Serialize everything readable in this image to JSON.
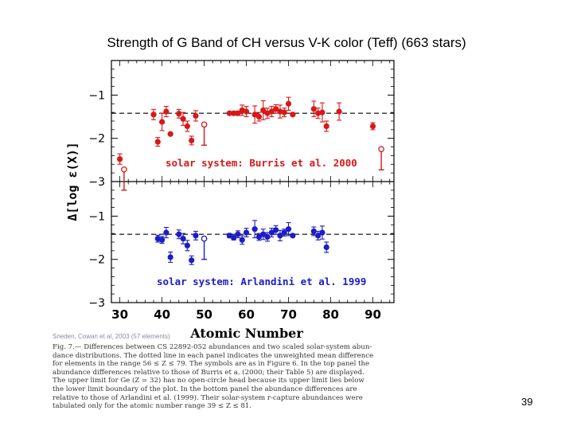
{
  "slide": {
    "title": "Strength of G Band of CH versus V-K color (Teff) (663 stars)",
    "page_number": "39"
  },
  "figure": {
    "credit": "Sneden, Cowan et al, 2003 (57 elements)",
    "caption_lines": [
      "Fig. 7.— Differences between CS 22892-052 abundances and two scaled solar-system abun-",
      "dance distributions. The dotted line in each panel indicates the unweighted mean difference",
      "for elements in the range 56 ≤ Z ≤ 79. The symbols are as in Figure 6. In the top panel the",
      "abundance differences relative to those of Burris et a. (2000; their Table 5) are displayed.",
      "The upper limit for Ge (Z = 32) has no open-circle head because its upper limit lies below",
      "the lower limit boundary of the plot. In the bottom panel the abundance differences are",
      "relative to those of Arlandini et al. (1999). Their solar-system r-capture abundances were",
      "tabulated only for the atomic number range 39 ≤ Z ≤ 81."
    ]
  },
  "chart_data": {
    "type": "scatter",
    "xlabel": "Atomic Number",
    "ylabel": "Δ[log ε(X)]",
    "xlim": [
      28,
      95
    ],
    "xticks": [
      30,
      40,
      50,
      60,
      70,
      80,
      90
    ],
    "colors": {
      "top": "#d81818",
      "bottom": "#1c1cc8"
    },
    "panels": [
      {
        "name": "top",
        "label": "solar system: Burris et al. 2000",
        "ylim": [
          -3.0,
          -0.2
        ],
        "yticks": [
          -1,
          -2,
          -3
        ],
        "ytick_labels": [
          "−1",
          "−2",
          "−3"
        ],
        "mean_line": -1.42,
        "points": [
          {
            "x": 30,
            "y": -2.48,
            "err": 0.12,
            "open": false,
            "limit": false
          },
          {
            "x": 31,
            "y": -2.72,
            "err": 0.0,
            "open": true,
            "limit": true
          },
          {
            "x": 38,
            "y": -1.45,
            "err": 0.12,
            "open": false,
            "limit": false
          },
          {
            "x": 39,
            "y": -2.08,
            "err": 0.1,
            "open": false,
            "limit": false
          },
          {
            "x": 40,
            "y": -1.62,
            "err": 0.2,
            "open": false,
            "limit": false
          },
          {
            "x": 41,
            "y": -1.38,
            "err": 0.12,
            "open": false,
            "limit": false
          },
          {
            "x": 42,
            "y": -1.9,
            "err": 0.0,
            "open": false,
            "limit": false
          },
          {
            "x": 44,
            "y": -1.43,
            "err": 0.1,
            "open": false,
            "limit": false
          },
          {
            "x": 45,
            "y": -1.55,
            "err": 0.15,
            "open": false,
            "limit": false
          },
          {
            "x": 46,
            "y": -1.72,
            "err": 0.12,
            "open": false,
            "limit": false
          },
          {
            "x": 47,
            "y": -2.05,
            "err": 0.1,
            "open": false,
            "limit": false
          },
          {
            "x": 48,
            "y": -1.48,
            "err": 0.12,
            "open": false,
            "limit": false
          },
          {
            "x": 50,
            "y": -1.68,
            "err": 0.0,
            "open": true,
            "limit": true
          },
          {
            "x": 56,
            "y": -1.42,
            "err": 0.0,
            "open": false,
            "limit": false
          },
          {
            "x": 57,
            "y": -1.42,
            "err": 0.0,
            "open": false,
            "limit": false
          },
          {
            "x": 58,
            "y": -1.42,
            "err": 0.05,
            "open": false,
            "limit": false
          },
          {
            "x": 59,
            "y": -1.35,
            "err": 0.12,
            "open": false,
            "limit": false
          },
          {
            "x": 60,
            "y": -1.38,
            "err": 0.12,
            "open": false,
            "limit": false
          },
          {
            "x": 62,
            "y": -1.45,
            "err": 0.2,
            "open": false,
            "limit": false
          },
          {
            "x": 63,
            "y": -1.5,
            "err": 0.1,
            "open": false,
            "limit": false
          },
          {
            "x": 64,
            "y": -1.35,
            "err": 0.22,
            "open": false,
            "limit": false
          },
          {
            "x": 65,
            "y": -1.42,
            "err": 0.12,
            "open": false,
            "limit": false
          },
          {
            "x": 66,
            "y": -1.38,
            "err": 0.12,
            "open": false,
            "limit": false
          },
          {
            "x": 67,
            "y": -1.32,
            "err": 0.1,
            "open": false,
            "limit": false
          },
          {
            "x": 68,
            "y": -1.38,
            "err": 0.15,
            "open": false,
            "limit": false
          },
          {
            "x": 69,
            "y": -1.4,
            "err": 0.1,
            "open": false,
            "limit": false
          },
          {
            "x": 70,
            "y": -1.2,
            "err": 0.15,
            "open": false,
            "limit": false
          },
          {
            "x": 71,
            "y": -1.45,
            "err": 0.0,
            "open": false,
            "limit": false
          },
          {
            "x": 76,
            "y": -1.32,
            "err": 0.18,
            "open": false,
            "limit": false
          },
          {
            "x": 77,
            "y": -1.42,
            "err": 0.12,
            "open": false,
            "limit": false
          },
          {
            "x": 78,
            "y": -1.4,
            "err": 0.22,
            "open": false,
            "limit": false
          },
          {
            "x": 79,
            "y": -1.72,
            "err": 0.12,
            "open": false,
            "limit": false
          },
          {
            "x": 82,
            "y": -1.38,
            "err": 0.2,
            "open": false,
            "limit": false
          },
          {
            "x": 90,
            "y": -1.72,
            "err": 0.08,
            "open": false,
            "limit": false
          },
          {
            "x": 92,
            "y": -2.25,
            "err": 0.0,
            "open": true,
            "limit": true
          }
        ]
      },
      {
        "name": "bottom",
        "label": "solar system: Arlandini et al. 1999",
        "ylim": [
          -3.0,
          -0.2
        ],
        "yticks": [
          -1,
          -2,
          -3
        ],
        "ytick_labels": [
          "−1",
          "−2",
          "−3"
        ],
        "mean_line": -1.42,
        "points": [
          {
            "x": 39,
            "y": -1.52,
            "err": 0.08,
            "open": false,
            "limit": false
          },
          {
            "x": 40,
            "y": -1.55,
            "err": 0.08,
            "open": false,
            "limit": false
          },
          {
            "x": 41,
            "y": -1.38,
            "err": 0.12,
            "open": false,
            "limit": false
          },
          {
            "x": 42,
            "y": -1.95,
            "err": 0.12,
            "open": false,
            "limit": false
          },
          {
            "x": 44,
            "y": -1.42,
            "err": 0.1,
            "open": false,
            "limit": false
          },
          {
            "x": 45,
            "y": -1.52,
            "err": 0.12,
            "open": false,
            "limit": false
          },
          {
            "x": 46,
            "y": -1.68,
            "err": 0.12,
            "open": false,
            "limit": false
          },
          {
            "x": 47,
            "y": -2.02,
            "err": 0.1,
            "open": false,
            "limit": false
          },
          {
            "x": 48,
            "y": -1.45,
            "err": 0.1,
            "open": false,
            "limit": false
          },
          {
            "x": 50,
            "y": -1.52,
            "err": 0.0,
            "open": true,
            "limit": true
          },
          {
            "x": 56,
            "y": -1.45,
            "err": 0.05,
            "open": false,
            "limit": false
          },
          {
            "x": 57,
            "y": -1.5,
            "err": 0.05,
            "open": false,
            "limit": false
          },
          {
            "x": 58,
            "y": -1.42,
            "err": 0.08,
            "open": false,
            "limit": false
          },
          {
            "x": 59,
            "y": -1.55,
            "err": 0.1,
            "open": false,
            "limit": false
          },
          {
            "x": 60,
            "y": -1.38,
            "err": 0.1,
            "open": false,
            "limit": false
          },
          {
            "x": 62,
            "y": -1.3,
            "err": 0.2,
            "open": false,
            "limit": false
          },
          {
            "x": 63,
            "y": -1.48,
            "err": 0.08,
            "open": false,
            "limit": false
          },
          {
            "x": 64,
            "y": -1.42,
            "err": 0.12,
            "open": false,
            "limit": false
          },
          {
            "x": 65,
            "y": -1.48,
            "err": 0.1,
            "open": false,
            "limit": false
          },
          {
            "x": 66,
            "y": -1.38,
            "err": 0.1,
            "open": false,
            "limit": false
          },
          {
            "x": 67,
            "y": -1.32,
            "err": 0.1,
            "open": false,
            "limit": false
          },
          {
            "x": 68,
            "y": -1.45,
            "err": 0.12,
            "open": false,
            "limit": false
          },
          {
            "x": 69,
            "y": -1.38,
            "err": 0.08,
            "open": false,
            "limit": false
          },
          {
            "x": 70,
            "y": -1.3,
            "err": 0.15,
            "open": false,
            "limit": false
          },
          {
            "x": 71,
            "y": -1.45,
            "err": 0.0,
            "open": false,
            "limit": false
          },
          {
            "x": 76,
            "y": -1.35,
            "err": 0.1,
            "open": false,
            "limit": false
          },
          {
            "x": 77,
            "y": -1.45,
            "err": 0.1,
            "open": false,
            "limit": false
          },
          {
            "x": 78,
            "y": -1.38,
            "err": 0.15,
            "open": false,
            "limit": false
          },
          {
            "x": 79,
            "y": -1.72,
            "err": 0.12,
            "open": false,
            "limit": false
          }
        ]
      }
    ]
  }
}
